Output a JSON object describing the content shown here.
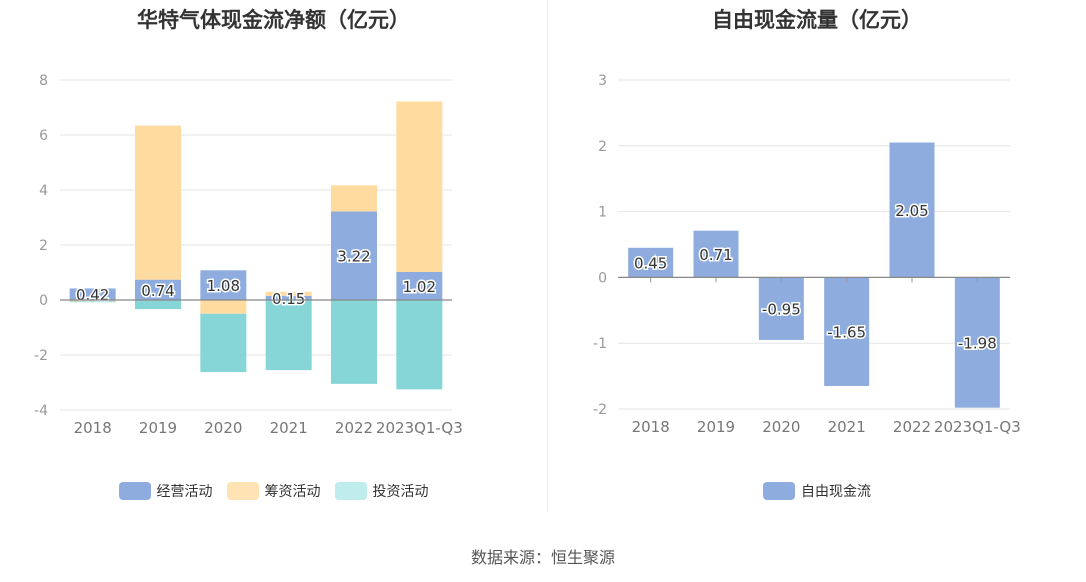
{
  "source_note": "数据来源：恒生聚源",
  "chart_data": [
    {
      "type": "bar",
      "stacked": true,
      "title": "华特气体现金流净额（亿元）",
      "categories": [
        "2018",
        "2019",
        "2020",
        "2021",
        "2022",
        "2023Q1-Q3"
      ],
      "ylim": [
        -4,
        8
      ],
      "yticks": [
        8,
        6,
        4,
        2,
        0,
        -2,
        -4
      ],
      "series": [
        {
          "name": "经营活动",
          "color": "#8eadde",
          "values": [
            0.42,
            0.74,
            1.08,
            0.15,
            3.22,
            1.02
          ]
        },
        {
          "name": "筹资活动",
          "color": "#ffdb9f",
          "values": [
            -0.05,
            5.6,
            -0.5,
            0.15,
            0.95,
            6.2
          ]
        },
        {
          "name": "投资活动",
          "color": "#86d6d8",
          "values": [
            -0.03,
            -0.33,
            -2.12,
            -2.55,
            -3.05,
            -3.25
          ]
        }
      ],
      "labels": [
        "0.42",
        "0.74",
        "1.08",
        "0.15",
        "3.22",
        "1.02"
      ],
      "legend": [
        {
          "label": "经营活动",
          "color": "#8eadde"
        },
        {
          "label": "筹资活动",
          "color": "#ffe3b5"
        },
        {
          "label": "投资活动",
          "color": "#bfecec"
        }
      ]
    },
    {
      "type": "bar",
      "title": "自由现金流量（亿元）",
      "categories": [
        "2018",
        "2019",
        "2020",
        "2021",
        "2022",
        "2023Q1-Q3"
      ],
      "ylim": [
        -2,
        3
      ],
      "yticks": [
        3,
        2,
        1,
        0,
        -1,
        -2
      ],
      "series": [
        {
          "name": "自由现金流",
          "color": "#8eadde",
          "values": [
            0.45,
            0.71,
            -0.95,
            -1.65,
            2.05,
            -1.98
          ]
        }
      ],
      "labels": [
        "0.45",
        "0.71",
        "-0.95",
        "-1.65",
        "2.05",
        "-1.98"
      ],
      "legend": [
        {
          "label": "自由现金流",
          "color": "#8eadde"
        }
      ]
    }
  ]
}
